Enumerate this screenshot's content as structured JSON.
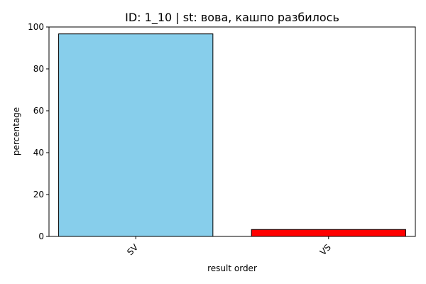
{
  "chart_data": {
    "type": "bar",
    "title": "ID: 1_10 | st: вова, кашпо разбилось",
    "xlabel": "result order",
    "ylabel": "percentage",
    "categories": [
      "SV",
      "VS"
    ],
    "values": [
      96.7,
      3.3
    ],
    "bar_colors": [
      "#87ceeb",
      "#ff0000"
    ],
    "edge_color": "#000000",
    "ylim": [
      0,
      100
    ],
    "yticks": [
      0,
      20,
      40,
      60,
      80,
      100
    ],
    "grid": false,
    "legend": false
  }
}
